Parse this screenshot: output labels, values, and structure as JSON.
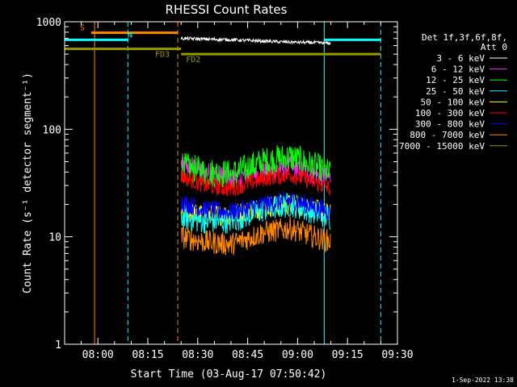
{
  "chart_data": {
    "type": "line",
    "title": "RHESSI Count Rates",
    "xlabel": "Start Time (03-Aug-17 07:50:42)",
    "ylabel": "Count Rate (s⁻¹ detector segment⁻¹)",
    "y_scale": "log",
    "ylim": [
      1,
      1000
    ],
    "xlim": [
      "07:50",
      "09:30"
    ],
    "x_ticks": [
      "08:00",
      "08:15",
      "08:30",
      "08:45",
      "09:00",
      "09:15",
      "09:30"
    ],
    "y_ticks": [
      "1",
      "10",
      "100",
      "1000"
    ],
    "grid": false,
    "legend_position": "right",
    "legend_header": [
      "Det 1f,3f,6f,8f,",
      "Att 0"
    ],
    "series": [
      {
        "name": "3 - 6 keV",
        "color": "#ffffff",
        "x": [
          "08:25",
          "08:40",
          "08:55",
          "09:05",
          "09:10"
        ],
        "values": [
          700,
          680,
          650,
          640,
          630
        ]
      },
      {
        "name": "6 - 12 keV",
        "color": "#ff22ff",
        "x": [
          "08:25",
          "08:32",
          "08:40",
          "08:50",
          "08:58",
          "09:05",
          "09:10"
        ],
        "values": [
          48,
          40,
          35,
          40,
          45,
          38,
          35
        ]
      },
      {
        "name": "12 - 25 keV",
        "color": "#00ff00",
        "x": [
          "08:25",
          "08:32",
          "08:40",
          "08:50",
          "08:58",
          "09:05",
          "09:10"
        ],
        "values": [
          45,
          40,
          38,
          50,
          55,
          45,
          38
        ]
      },
      {
        "name": "25 - 50 keV",
        "color": "#00ffff",
        "x": [
          "08:25",
          "08:32",
          "08:40",
          "08:50",
          "08:58",
          "09:05",
          "09:10"
        ],
        "values": [
          15,
          14,
          14,
          18,
          20,
          17,
          15
        ]
      },
      {
        "name": "50 - 100 keV",
        "color": "#ffff00",
        "x": [
          "08:25",
          "08:32",
          "08:40",
          "08:50",
          "08:58",
          "09:05",
          "09:10"
        ],
        "values": [
          17,
          16,
          16,
          19,
          20,
          18,
          16
        ]
      },
      {
        "name": "100 - 300 keV",
        "color": "#ff0000",
        "x": [
          "08:25",
          "08:32",
          "08:40",
          "08:50",
          "08:58",
          "09:05",
          "09:10"
        ],
        "values": [
          37,
          30,
          28,
          35,
          38,
          32,
          28
        ]
      },
      {
        "name": "300 - 800 keV",
        "color": "#0000ff",
        "x": [
          "08:25",
          "08:32",
          "08:40",
          "08:50",
          "08:58",
          "09:05",
          "09:10"
        ],
        "values": [
          21,
          18,
          17,
          20,
          22,
          19,
          17
        ]
      },
      {
        "name": "800 - 7000 keV",
        "color": "#ff8800",
        "x": [
          "08:25",
          "08:32",
          "08:40",
          "08:50",
          "08:58",
          "09:05",
          "09:10"
        ],
        "values": [
          10,
          9,
          8.5,
          11,
          12,
          10,
          9
        ]
      },
      {
        "name": "7000 - 15000 keV",
        "color": "#999900",
        "x": [],
        "values": []
      }
    ],
    "annotations": [
      {
        "label": "S",
        "color": "#ff8800",
        "x_start": "07:58",
        "x_end": "08:24",
        "y": 790
      },
      {
        "label": "N",
        "color": "#00ffff",
        "x_start": "07:50",
        "x_end": "08:09",
        "y": 680
      },
      {
        "label": "FD3",
        "color": "#999900",
        "x_start": "07:50",
        "x_end": "08:25",
        "y": 560
      },
      {
        "label": "FD2",
        "color": "#999900",
        "x_start": "08:25",
        "x_end": "09:25",
        "y": 500
      },
      {
        "label": "",
        "color": "#00ffff",
        "x_start": "09:08",
        "x_end": "09:25",
        "y": 680
      }
    ],
    "vertical_lines": [
      {
        "x": "07:59",
        "color": "#ff8800",
        "style": "solid"
      },
      {
        "x": "08:09",
        "color": "#00ffff",
        "style": "dashed"
      },
      {
        "x": "08:24",
        "color": "#ff8800",
        "style": "dashed"
      },
      {
        "x": "09:08",
        "color": "#00ffff",
        "style": "solid"
      },
      {
        "x": "09:25",
        "color": "#00ffff",
        "style": "dashed"
      }
    ],
    "timestamp": "1-Sep-2022 13:38"
  }
}
